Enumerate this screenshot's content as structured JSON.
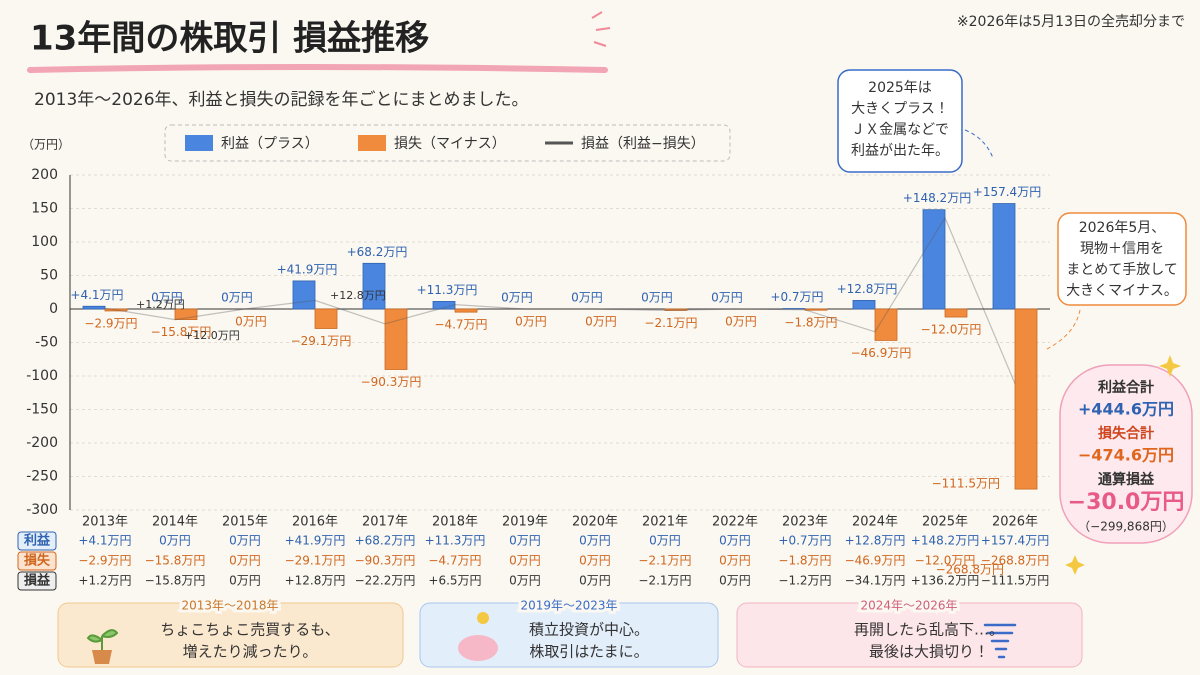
{
  "title": "13年間の株取引 損益推移",
  "note": "※2026年は5月13日の全売却分まで",
  "subtitle": "2013年～2026年、利益と損失の記録を年ごとにまとめました。",
  "chart_data": {
    "type": "bar",
    "y_label": "（万円）",
    "categories": [
      "2013年",
      "2014年",
      "2015年",
      "2016年",
      "2017年",
      "2018年",
      "2019年",
      "2020年",
      "2021年",
      "2022年",
      "2023年",
      "2024年",
      "2025年",
      "2026年"
    ],
    "series": [
      {
        "name": "利益（プラス）",
        "color": "#4a86e0",
        "values": [
          4.1,
          0,
          0,
          41.9,
          68.2,
          11.3,
          0,
          0,
          0,
          0,
          0.7,
          12.8,
          148.2,
          157.4
        ],
        "value_labels": [
          "+4.1万円",
          "0万円",
          "0万円",
          "+41.9万円",
          "+68.2万円",
          "+11.3万円",
          "0万円",
          "0万円",
          "0万円",
          "0万円",
          "+0.7万円",
          "+12.8万円",
          "+148.2万円",
          "+157.4万円"
        ]
      },
      {
        "name": "損失（マイナス）",
        "color": "#f08a3c",
        "values": [
          -2.9,
          -15.8,
          0,
          -29.1,
          -90.3,
          -4.7,
          0,
          0,
          -2.1,
          0,
          -1.8,
          -46.9,
          -12.0,
          -268.8
        ],
        "value_labels": [
          "−2.9万円",
          "−15.8万円",
          "0万円",
          "−29.1万円",
          "−90.3万円",
          "−4.7万円",
          "0万円",
          "0万円",
          "−2.1万円",
          "0万円",
          "−1.8万円",
          "−46.9万円",
          "−12.0万円",
          "−268.8万円"
        ]
      },
      {
        "name": "損益（利益−損失）",
        "color": "#555555",
        "type": "line",
        "values": [
          1.2,
          -15.8,
          0,
          12.8,
          -22.2,
          6.5,
          0,
          0,
          -2.1,
          0,
          -1.2,
          -34.1,
          136.2,
          -111.5
        ],
        "value_labels": [
          "+1.2万円",
          "−15.8万円",
          "0万円",
          "+12.8万円",
          "−22.2万円",
          "+6.5万円",
          "0万円",
          "0万円",
          "−2.1万円",
          "0万円",
          "−1.2万円",
          "−34.1万円",
          "+136.2万円",
          "−111.5万円"
        ]
      }
    ],
    "ylim": [
      -300,
      200
    ],
    "yticks": [
      -300,
      -250,
      -200,
      -150,
      -100,
      -50,
      0,
      50,
      100,
      150,
      200
    ],
    "grid": true,
    "table_labels": [
      "利益",
      "損失",
      "損益"
    ],
    "annotations": [
      "+1.2万円",
      "+12.0万円",
      "+12.8万円",
      "−111.5万円"
    ]
  },
  "callouts": [
    {
      "lines": [
        "2025年は",
        "大きくプラス！",
        "ＪＸ金属などで",
        "利益が出た年。"
      ]
    },
    {
      "lines": [
        "2026年5月、",
        "現物＋信用を",
        "まとめて手放して",
        "大きくマイナス。"
      ]
    }
  ],
  "summary": {
    "lines": [
      "利益合計",
      "+444.6万円",
      "損失合計",
      "−474.6万円",
      "通算損益",
      "−30.0万円",
      "（−299,868円）"
    ]
  },
  "panels": [
    {
      "period": "2013年～2018年",
      "lines": [
        "ちょこちょこ売買するも、",
        "増えたり減ったり。"
      ]
    },
    {
      "period": "2019年～2023年",
      "lines": [
        "積立投資が中心。",
        "株取引はたまに。"
      ]
    },
    {
      "period": "2024年～2026年",
      "lines": [
        "再開したら乱高下…。",
        "最後は大損切り！"
      ]
    }
  ]
}
